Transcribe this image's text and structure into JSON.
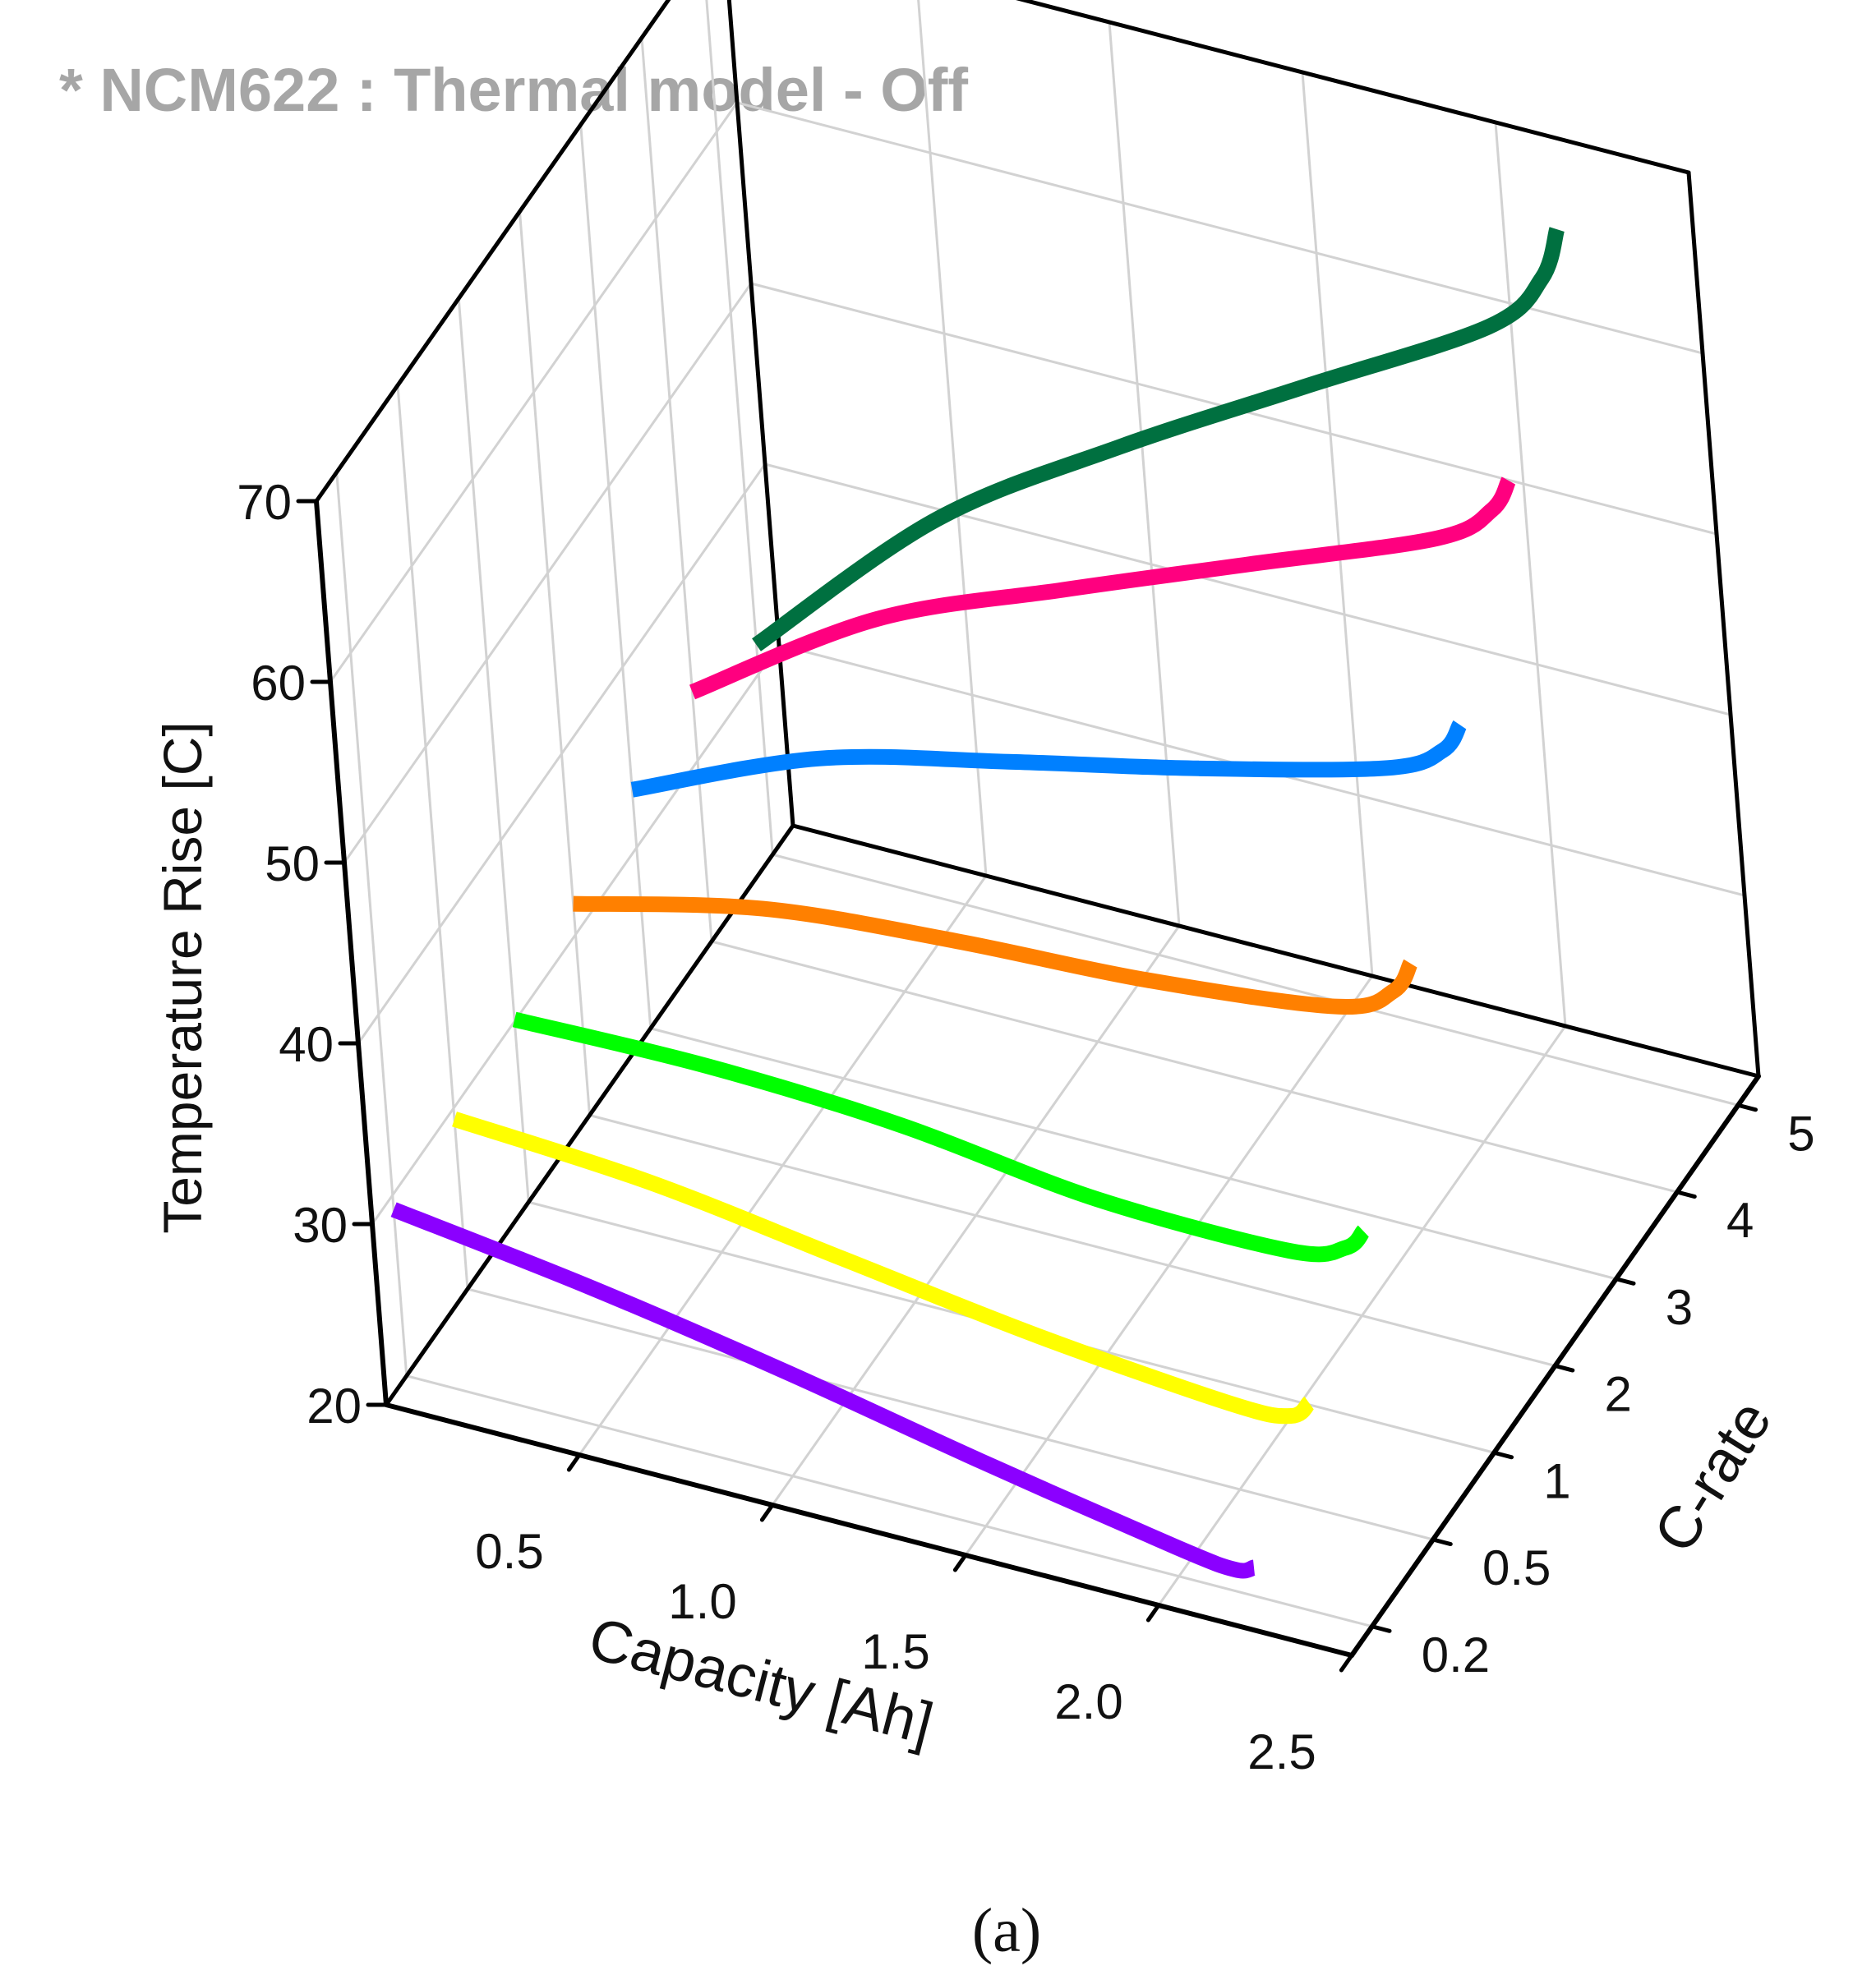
{
  "chart_data": {
    "type": "line3d",
    "title": "* NCM622 : Thermal model - Off",
    "caption": "(a)",
    "xlabel": "Capacity [Ah]",
    "ylabel": "C-rate",
    "zlabel": "Temperature Rise [C]",
    "x_ticks": [
      "0.5",
      "1.0",
      "1.5",
      "2.0",
      "2.5"
    ],
    "y_ticks": [
      "0.2",
      "0.5",
      "1",
      "2",
      "3",
      "4",
      "5"
    ],
    "z_ticks": [
      "20",
      "30",
      "40",
      "50",
      "60",
      "70"
    ],
    "xlim": [
      0.0,
      2.5
    ],
    "zlim": [
      20,
      70
    ],
    "series": [
      {
        "name": "0.2C",
        "color": "#8b00ff",
        "x": [
          0.0,
          0.5,
          1.0,
          1.5,
          2.0,
          2.15,
          2.2
        ],
        "y": [
          29.2,
          27.7,
          25.8,
          23.6,
          21.6,
          21.2,
          21.6
        ]
      },
      {
        "name": "0.5C",
        "color": "#ffff00",
        "x": [
          0.0,
          0.5,
          1.0,
          1.5,
          2.0,
          2.15,
          2.2
        ],
        "y": [
          29.4,
          28.7,
          27.2,
          25.7,
          24.7,
          24.9,
          25.9
        ]
      },
      {
        "name": "1C",
        "color": "#00ff00",
        "x": [
          0.0,
          0.5,
          1.0,
          1.5,
          2.0,
          2.15,
          2.2
        ],
        "y": [
          30.1,
          30.3,
          29.8,
          28.5,
          28.4,
          29.4,
          30.6
        ]
      },
      {
        "name": "2C",
        "color": "#ff8000",
        "x": [
          0.0,
          0.5,
          1.0,
          1.5,
          2.0,
          2.15,
          2.2
        ],
        "y": [
          31.7,
          34.2,
          35.2,
          35.8,
          37.1,
          38.8,
          40.6
        ]
      },
      {
        "name": "3C",
        "color": "#0080ff",
        "x": [
          0.0,
          0.5,
          1.0,
          1.5,
          2.0,
          2.15,
          2.2
        ],
        "y": [
          33.2,
          37.7,
          40.3,
          42.7,
          45.5,
          47.3,
          49.0
        ]
      },
      {
        "name": "4C",
        "color": "#ff007f",
        "x": [
          0.0,
          0.5,
          1.0,
          1.5,
          2.0,
          2.15,
          2.2
        ],
        "y": [
          33.8,
          40.6,
          45.0,
          49.2,
          53.4,
          55.8,
          57.7
        ]
      },
      {
        "name": "5C",
        "color": "#007040",
        "x": [
          0.0,
          0.5,
          1.0,
          1.5,
          2.0,
          2.15,
          2.2
        ],
        "y": [
          31.6,
          41.3,
          48.1,
          54.2,
          60.3,
          63.8,
          66.8
        ]
      }
    ]
  }
}
